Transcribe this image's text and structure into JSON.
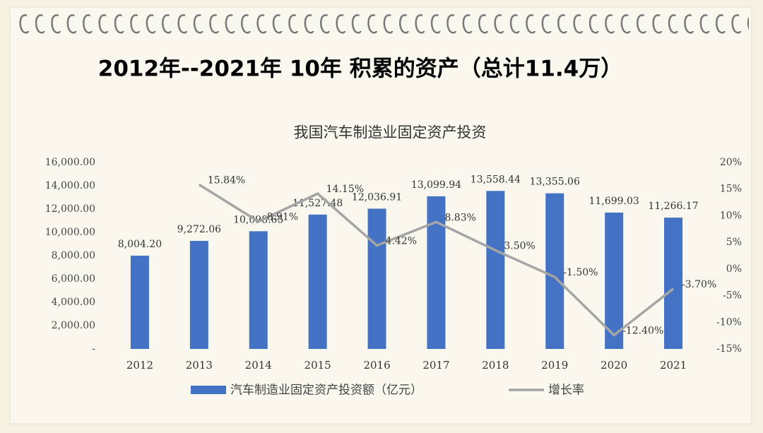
{
  "title": "2012年--2021年 10年 积累的资产（总计11.4万）",
  "chart_data": {
    "type": "bar_line",
    "title": "我国汽车制造业固定资产投资",
    "categories": [
      "2012",
      "2013",
      "2014",
      "2015",
      "2016",
      "2017",
      "2018",
      "2019",
      "2020",
      "2021"
    ],
    "series": [
      {
        "name": "汽车制造业固定资产投资额（亿元）",
        "type": "bar",
        "color": "#4472c4",
        "axis": "y",
        "values": [
          8004.2,
          9272.06,
          10098.65,
          11527.48,
          12036.91,
          13099.94,
          13558.44,
          13355.06,
          11699.03,
          11266.17
        ],
        "value_labels": [
          "8,004.20",
          "9,272.06",
          "10,098.65",
          "11,527.48",
          "12,036.91",
          "13,099.94",
          "13,558.44",
          "13,355.06",
          "11,699.03",
          "11,266.17"
        ]
      },
      {
        "name": "增长率",
        "type": "line",
        "color": "#a5a5a5",
        "axis": "y2",
        "values": [
          null,
          15.84,
          8.91,
          14.15,
          4.42,
          8.83,
          3.5,
          -1.5,
          -12.4,
          -3.7
        ],
        "value_labels": [
          null,
          "15.84%",
          "8.91%",
          "14.15%",
          "4.42%",
          "8.83%",
          "3.50%",
          "-1.50%",
          "-12.40%",
          "-3.70%"
        ]
      }
    ],
    "ylim": [
      0,
      16000
    ],
    "yticks": [
      {
        "value": 0,
        "label": "-"
      },
      {
        "value": 2000,
        "label": "2,000.00"
      },
      {
        "value": 4000,
        "label": "4,000.00"
      },
      {
        "value": 6000,
        "label": "6,000.00"
      },
      {
        "value": 8000,
        "label": "8,000.00"
      },
      {
        "value": 10000,
        "label": "10,000.00"
      },
      {
        "value": 12000,
        "label": "12,000.00"
      },
      {
        "value": 14000,
        "label": "14,000.00"
      },
      {
        "value": 16000,
        "label": "16,000.00"
      }
    ],
    "y2lim": [
      -15,
      20
    ],
    "y2ticks": [
      {
        "value": -15,
        "label": "-15%"
      },
      {
        "value": -10,
        "label": "-10%"
      },
      {
        "value": -5,
        "label": "-5%"
      },
      {
        "value": 0,
        "label": "0%"
      },
      {
        "value": 5,
        "label": "5%"
      },
      {
        "value": 10,
        "label": "10%"
      },
      {
        "value": 15,
        "label": "15%"
      },
      {
        "value": 20,
        "label": "20%"
      }
    ],
    "grid": false,
    "legend": "bottom"
  }
}
